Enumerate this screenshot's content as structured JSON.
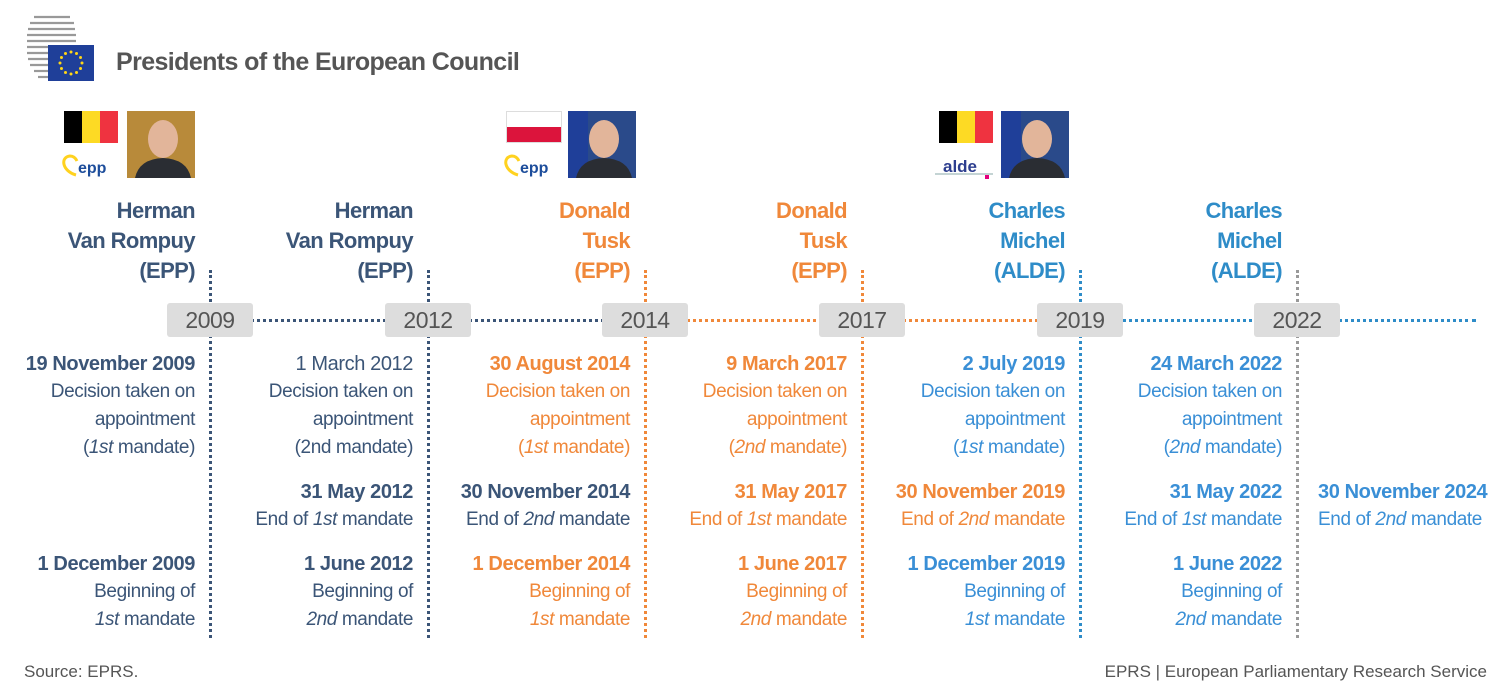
{
  "header": {
    "title": "Presidents of the European Council",
    "logo": "European Council logo"
  },
  "colors": {
    "navy": "#3b5577",
    "orange": "#f0883a",
    "blue": "#2e8cc8",
    "blue_date": "#3a8fd6",
    "grey": "#999999",
    "year_box": "#dddddd"
  },
  "timeline": {
    "years": [
      "2009",
      "2012",
      "2014",
      "2017",
      "2019",
      "2022"
    ]
  },
  "portraits": [
    {
      "country": "Belgium",
      "flag": [
        "#000000",
        "#fdda24",
        "#ef3340"
      ],
      "party_logo": "epp",
      "person": "Herman Van Rompuy"
    },
    {
      "country": "Poland",
      "flag": [
        "#ffffff",
        "#dc143c"
      ],
      "party_logo": "epp",
      "person": "Donald Tusk"
    },
    {
      "country": "Belgium",
      "flag": [
        "#000000",
        "#fdda24",
        "#ef3340"
      ],
      "party_logo": "alde",
      "person": "Charles Michel"
    }
  ],
  "columns": [
    {
      "name": [
        "Herman",
        "Van Rompuy",
        "(EPP)"
      ],
      "color": "navy",
      "line": "navy",
      "blocks": [
        {
          "slot": 0,
          "color": "navy",
          "date": "19 November 2009",
          "lines": [
            [
              {
                "t": "Decision taken on"
              }
            ],
            [
              {
                "t": "appointment"
              }
            ],
            [
              {
                "t": "("
              },
              {
                "t": "1st",
                "i": true
              },
              {
                "t": " mandate)"
              }
            ]
          ]
        },
        {
          "slot": 2,
          "color": "navy",
          "date": "1 December 2009",
          "lines": [
            [
              {
                "t": "Beginning of"
              }
            ],
            [
              {
                "t": "1st",
                "i": true
              },
              {
                "t": " mandate"
              }
            ]
          ]
        }
      ]
    },
    {
      "name": [
        "Herman",
        "Van Rompuy",
        "(EPP)"
      ],
      "color": "navy",
      "line": "navy",
      "blocks": [
        {
          "slot": 0,
          "color": "navy",
          "date": "1 March 2012",
          "date_regular": true,
          "lines": [
            [
              {
                "t": "Decision taken on"
              }
            ],
            [
              {
                "t": "appointment"
              }
            ],
            [
              {
                "t": "(2nd mandate)"
              }
            ]
          ]
        },
        {
          "slot": 1,
          "color": "navy",
          "date": "31 May 2012",
          "lines": [
            [
              {
                "t": "End of "
              },
              {
                "t": "1st",
                "i": true
              },
              {
                "t": " mandate"
              }
            ]
          ]
        },
        {
          "slot": 2,
          "color": "navy",
          "date": "1 June 2012",
          "lines": [
            [
              {
                "t": "Beginning of"
              }
            ],
            [
              {
                "t": "2nd",
                "i": true
              },
              {
                "t": " mandate"
              }
            ]
          ]
        }
      ]
    },
    {
      "name": [
        "Donald",
        "Tusk",
        "(EPP)"
      ],
      "color": "orange",
      "line": "orange",
      "blocks": [
        {
          "slot": 0,
          "color": "orange",
          "date": "30 August 2014",
          "lines": [
            [
              {
                "t": "Decision taken on"
              }
            ],
            [
              {
                "t": "appointment"
              }
            ],
            [
              {
                "t": "("
              },
              {
                "t": "1st",
                "i": true
              },
              {
                "t": " mandate)"
              }
            ]
          ]
        },
        {
          "slot": 1,
          "color": "navy",
          "date": "30 November 2014",
          "lines": [
            [
              {
                "t": "End of "
              },
              {
                "t": "2nd",
                "i": true
              },
              {
                "t": " mandate"
              }
            ]
          ]
        },
        {
          "slot": 2,
          "color": "orange",
          "date": "1 December 2014",
          "lines": [
            [
              {
                "t": "Beginning of"
              }
            ],
            [
              {
                "t": "1st",
                "i": true
              },
              {
                "t": " mandate"
              }
            ]
          ]
        }
      ]
    },
    {
      "name": [
        "Donald",
        "Tusk",
        "(EPP)"
      ],
      "color": "orange",
      "line": "orange",
      "blocks": [
        {
          "slot": 0,
          "color": "orange",
          "date": "9 March 2017",
          "lines": [
            [
              {
                "t": "Decision taken on"
              }
            ],
            [
              {
                "t": "appointment"
              }
            ],
            [
              {
                "t": "("
              },
              {
                "t": "2nd",
                "i": true
              },
              {
                "t": " mandate)"
              }
            ]
          ]
        },
        {
          "slot": 1,
          "color": "orange",
          "date": "31 May 2017",
          "lines": [
            [
              {
                "t": "End of "
              },
              {
                "t": "1st",
                "i": true
              },
              {
                "t": " mandate"
              }
            ]
          ]
        },
        {
          "slot": 2,
          "color": "orange",
          "date": "1 June 2017",
          "lines": [
            [
              {
                "t": "Beginning of"
              }
            ],
            [
              {
                "t": "2nd",
                "i": true
              },
              {
                "t": " mandate"
              }
            ]
          ]
        }
      ]
    },
    {
      "name": [
        "Charles",
        "Michel",
        "(ALDE)"
      ],
      "color": "blue",
      "line": "blue",
      "blocks": [
        {
          "slot": 0,
          "color": "blue_date",
          "date": "2 July 2019",
          "lines": [
            [
              {
                "t": "Decision taken on"
              }
            ],
            [
              {
                "t": "appointment"
              }
            ],
            [
              {
                "t": "("
              },
              {
                "t": "1st",
                "i": true
              },
              {
                "t": " mandate)"
              }
            ]
          ]
        },
        {
          "slot": 1,
          "color": "orange",
          "date": "30 November 2019",
          "lines": [
            [
              {
                "t": "End of "
              },
              {
                "t": "2nd",
                "i": true
              },
              {
                "t": " mandate"
              }
            ]
          ]
        },
        {
          "slot": 2,
          "color": "blue_date",
          "date": "1 December 2019",
          "lines": [
            [
              {
                "t": "Beginning of"
              }
            ],
            [
              {
                "t": "1st",
                "i": true
              },
              {
                "t": " mandate"
              }
            ]
          ]
        }
      ]
    },
    {
      "name": [
        "Charles",
        "Michel",
        "(ALDE)"
      ],
      "color": "blue",
      "line": "grey",
      "blocks": [
        {
          "slot": 0,
          "color": "blue_date",
          "date": "24 March 2022",
          "lines": [
            [
              {
                "t": "Decision taken on"
              }
            ],
            [
              {
                "t": "appointment"
              }
            ],
            [
              {
                "t": "("
              },
              {
                "t": "2nd",
                "i": true
              },
              {
                "t": " mandate)"
              }
            ]
          ]
        },
        {
          "slot": 1,
          "color": "blue_date",
          "date": "31 May 2022",
          "lines": [
            [
              {
                "t": "End of "
              },
              {
                "t": "1st",
                "i": true
              },
              {
                "t": " mandate"
              }
            ]
          ]
        },
        {
          "slot": 2,
          "color": "blue_date",
          "date": "1 June 2022",
          "lines": [
            [
              {
                "t": "Beginning of"
              }
            ],
            [
              {
                "t": "2nd",
                "i": true
              },
              {
                "t": " mandate"
              }
            ]
          ]
        }
      ]
    },
    {
      "name": [],
      "color": "blue",
      "line": null,
      "blocks": [
        {
          "slot": 1,
          "color": "blue_date",
          "date": "30 November 2024",
          "lines": [
            [
              {
                "t": "End of "
              },
              {
                "t": "2nd",
                "i": true
              },
              {
                "t": " mandate"
              }
            ]
          ]
        }
      ]
    }
  ],
  "footer": {
    "source": "Source: EPRS.",
    "credit": "EPRS | European Parliamentary Research Service"
  }
}
